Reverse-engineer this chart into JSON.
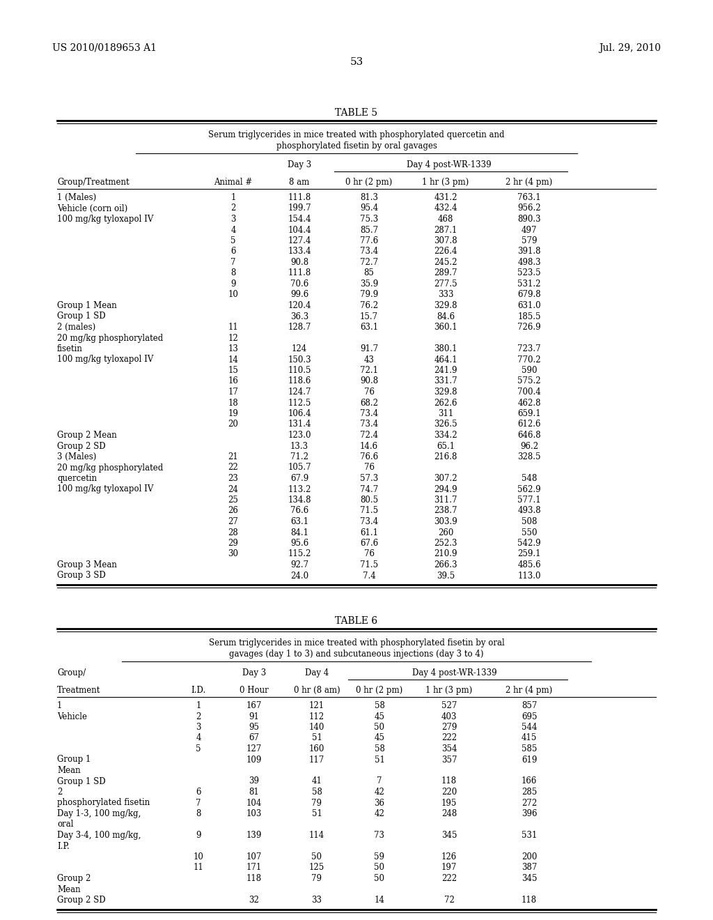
{
  "patent_number": "US 2010/0189653 A1",
  "date": "Jul. 29, 2010",
  "page_number": "53",
  "table5_title": "TABLE 5",
  "table5_subtitle1": "Serum triglycerides in mice treated with phosphorylated quercetin and",
  "table5_subtitle2": "phosphorylated fisetin by oral gavages",
  "table5_rows": [
    [
      "1 (Males)",
      "1",
      "111.8",
      "81.3",
      "431.2",
      "763.1"
    ],
    [
      "Vehicle (corn oil)",
      "2",
      "199.7",
      "95.4",
      "432.4",
      "956.2"
    ],
    [
      "100 mg/kg tyloxapol IV",
      "3",
      "154.4",
      "75.3",
      "468",
      "890.3"
    ],
    [
      "",
      "4",
      "104.4",
      "85.7",
      "287.1",
      "497"
    ],
    [
      "",
      "5",
      "127.4",
      "77.6",
      "307.8",
      "579"
    ],
    [
      "",
      "6",
      "133.4",
      "73.4",
      "226.4",
      "391.8"
    ],
    [
      "",
      "7",
      "90.8",
      "72.7",
      "245.2",
      "498.3"
    ],
    [
      "",
      "8",
      "111.8",
      "85",
      "289.7",
      "523.5"
    ],
    [
      "",
      "9",
      "70.6",
      "35.9",
      "277.5",
      "531.2"
    ],
    [
      "",
      "10",
      "99.6",
      "79.9",
      "333",
      "679.8"
    ],
    [
      "Group 1 Mean",
      "",
      "120.4",
      "76.2",
      "329.8",
      "631.0"
    ],
    [
      "Group 1 SD",
      "",
      "36.3",
      "15.7",
      "84.6",
      "185.5"
    ],
    [
      "2 (males)",
      "11",
      "128.7",
      "63.1",
      "360.1",
      "726.9"
    ],
    [
      "20 mg/kg phosphorylated",
      "12",
      "",
      "",
      "",
      ""
    ],
    [
      "fisetin",
      "13",
      "124",
      "91.7",
      "380.1",
      "723.7"
    ],
    [
      "100 mg/kg tyloxapol IV",
      "14",
      "150.3",
      "43",
      "464.1",
      "770.2"
    ],
    [
      "",
      "15",
      "110.5",
      "72.1",
      "241.9",
      "590"
    ],
    [
      "",
      "16",
      "118.6",
      "90.8",
      "331.7",
      "575.2"
    ],
    [
      "",
      "17",
      "124.7",
      "76",
      "329.8",
      "700.4"
    ],
    [
      "",
      "18",
      "112.5",
      "68.2",
      "262.6",
      "462.8"
    ],
    [
      "",
      "19",
      "106.4",
      "73.4",
      "311",
      "659.1"
    ],
    [
      "",
      "20",
      "131.4",
      "73.4",
      "326.5",
      "612.6"
    ],
    [
      "Group 2 Mean",
      "",
      "123.0",
      "72.4",
      "334.2",
      "646.8"
    ],
    [
      "Group 2 SD",
      "",
      "13.3",
      "14.6",
      "65.1",
      "96.2"
    ],
    [
      "3 (Males)",
      "21",
      "71.2",
      "76.6",
      "216.8",
      "328.5"
    ],
    [
      "20 mg/kg phosphorylated",
      "22",
      "105.7",
      "76",
      "",
      ""
    ],
    [
      "quercetin",
      "23",
      "67.9",
      "57.3",
      "307.2",
      "548"
    ],
    [
      "100 mg/kg tyloxapol IV",
      "24",
      "113.2",
      "74.7",
      "294.9",
      "562.9"
    ],
    [
      "",
      "25",
      "134.8",
      "80.5",
      "311.7",
      "577.1"
    ],
    [
      "",
      "26",
      "76.6",
      "71.5",
      "238.7",
      "493.8"
    ],
    [
      "",
      "27",
      "63.1",
      "73.4",
      "303.9",
      "508"
    ],
    [
      "",
      "28",
      "84.1",
      "61.1",
      "260",
      "550"
    ],
    [
      "",
      "29",
      "95.6",
      "67.6",
      "252.3",
      "542.9"
    ],
    [
      "",
      "30",
      "115.2",
      "76",
      "210.9",
      "259.1"
    ],
    [
      "Group 3 Mean",
      "",
      "92.7",
      "71.5",
      "266.3",
      "485.6"
    ],
    [
      "Group 3 SD",
      "",
      "24.0",
      "7.4",
      "39.5",
      "113.0"
    ]
  ],
  "table6_title": "TABLE 6",
  "table6_subtitle1": "Serum triglycerides in mice treated with phosphorylated fisetin by oral",
  "table6_subtitle2": "gavages (day 1 to 3) and subcutaneous injections (day 3 to 4)",
  "table6_rows": [
    [
      "1",
      "1",
      "167",
      "121",
      "58",
      "527",
      "857"
    ],
    [
      "Vehicle",
      "2",
      "91",
      "112",
      "45",
      "403",
      "695"
    ],
    [
      "",
      "3",
      "95",
      "140",
      "50",
      "279",
      "544"
    ],
    [
      "",
      "4",
      "67",
      "51",
      "45",
      "222",
      "415"
    ],
    [
      "",
      "5",
      "127",
      "160",
      "58",
      "354",
      "585"
    ],
    [
      "Group 1",
      "",
      "109",
      "117",
      "51",
      "357",
      "619"
    ],
    [
      "Mean",
      "",
      "",
      "",
      "",
      "",
      ""
    ],
    [
      "Group 1 SD",
      "",
      "39",
      "41",
      "7",
      "118",
      "166"
    ],
    [
      "2",
      "6",
      "81",
      "58",
      "42",
      "220",
      "285"
    ],
    [
      "phosphorylated fisetin",
      "7",
      "104",
      "79",
      "36",
      "195",
      "272"
    ],
    [
      "Day 1-3, 100 mg/kg,",
      "8",
      "103",
      "51",
      "42",
      "248",
      "396"
    ],
    [
      "oral",
      "",
      "",
      "",
      "",
      "",
      ""
    ],
    [
      "Day 3-4, 100 mg/kg,",
      "9",
      "139",
      "114",
      "73",
      "345",
      "531"
    ],
    [
      "I.P.",
      "",
      "",
      "",
      "",
      "",
      ""
    ],
    [
      "",
      "10",
      "107",
      "50",
      "59",
      "126",
      "200"
    ],
    [
      "",
      "11",
      "171",
      "125",
      "50",
      "197",
      "387"
    ],
    [
      "Group 2",
      "",
      "118",
      "79",
      "50",
      "222",
      "345"
    ],
    [
      "Mean",
      "",
      "",
      "",
      "",
      "",
      ""
    ],
    [
      "Group 2 SD",
      "",
      "32",
      "33",
      "14",
      "72",
      "118"
    ]
  ]
}
